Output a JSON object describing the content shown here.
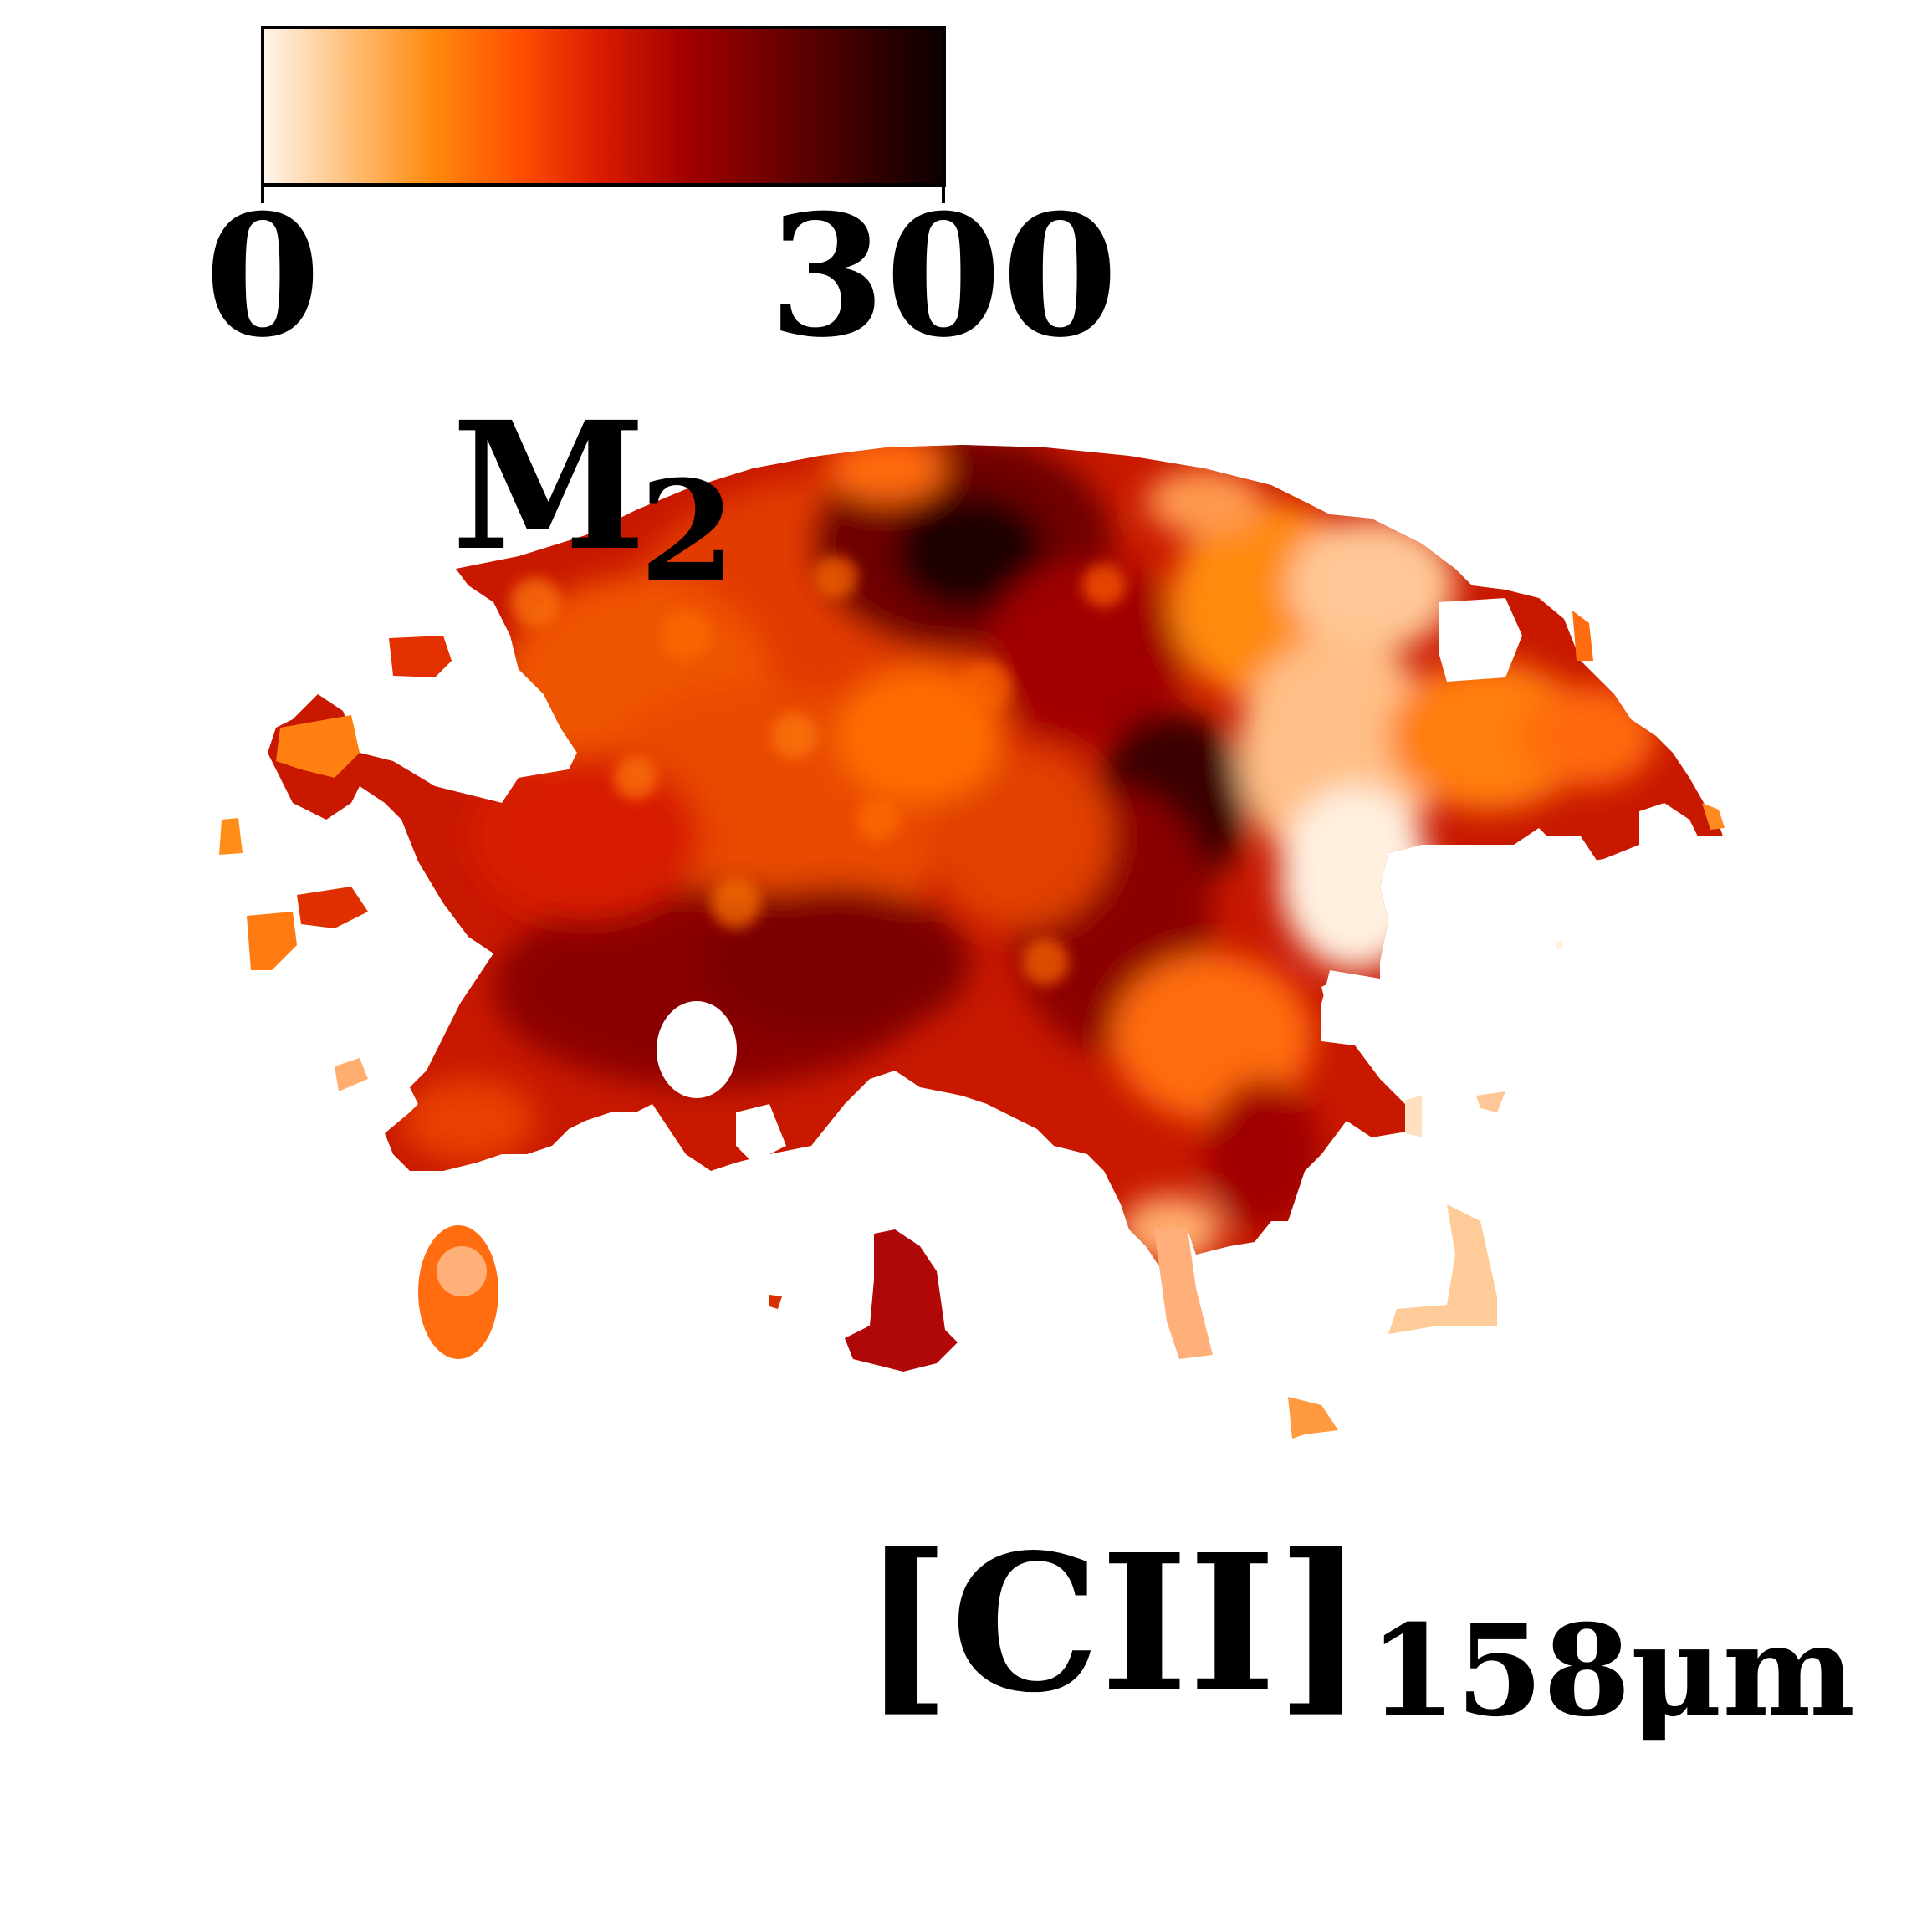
{
  "colorbar": {
    "min_label": "0",
    "max_label": "300",
    "colors": [
      "#fff6ee",
      "#ffc07a",
      "#ff8a0c",
      "#ff5000",
      "#d81a00",
      "#a00000",
      "#6e0000",
      "#3a0000",
      "#0a0000"
    ]
  },
  "panel": {
    "label_main": "M",
    "label_sub": "2"
  },
  "tracer": {
    "label_main": "[CII]",
    "label_sub": "158μm"
  }
}
